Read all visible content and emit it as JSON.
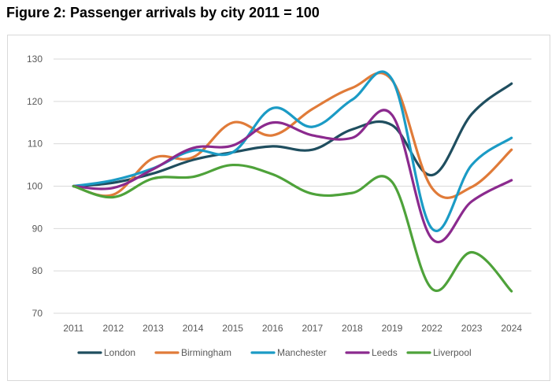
{
  "figure_title": "Figure 2: Passenger arrivals by city 2011 = 100",
  "chart_data": {
    "type": "line",
    "title": "Figure 2: Passenger arrivals by city 2011 = 100",
    "xlabel": "",
    "ylabel": "",
    "categories": [
      "2011",
      "2012",
      "2013",
      "2014",
      "2015",
      "2016",
      "2017",
      "2018",
      "2019",
      "2022",
      "2023",
      "2024"
    ],
    "ylim": [
      70,
      130
    ],
    "yticks": [
      70,
      80,
      90,
      100,
      110,
      120,
      130
    ],
    "grid": true,
    "legend_position": "bottom",
    "series": [
      {
        "name": "London",
        "color": "#1f4e5f",
        "values": [
          100,
          100.8,
          103,
          106.2,
          108,
          109.4,
          108.6,
          113.4,
          114.4,
          102.6,
          117,
          124.2
        ]
      },
      {
        "name": "Birmingham",
        "color": "#e07b39",
        "values": [
          100,
          98,
          106.6,
          106.8,
          115,
          112,
          118.2,
          123.2,
          125,
          99.6,
          99.8,
          108.6
        ]
      },
      {
        "name": "Manchester",
        "color": "#1b9bc5",
        "values": [
          100,
          101.4,
          104.2,
          108.4,
          108,
          118.4,
          114,
          120.4,
          125.2,
          90,
          105,
          111.4
        ]
      },
      {
        "name": "Leeds",
        "color": "#8b2a8e",
        "values": [
          100,
          99.6,
          104,
          109,
          109.6,
          115,
          112,
          111.4,
          116.8,
          87.6,
          96.4,
          101.4
        ]
      },
      {
        "name": "Liverpool",
        "color": "#4ea23a",
        "values": [
          100,
          97.4,
          101.8,
          102.2,
          105,
          102.8,
          98.2,
          98.4,
          101,
          75.8,
          84.4,
          75.2
        ]
      }
    ]
  }
}
